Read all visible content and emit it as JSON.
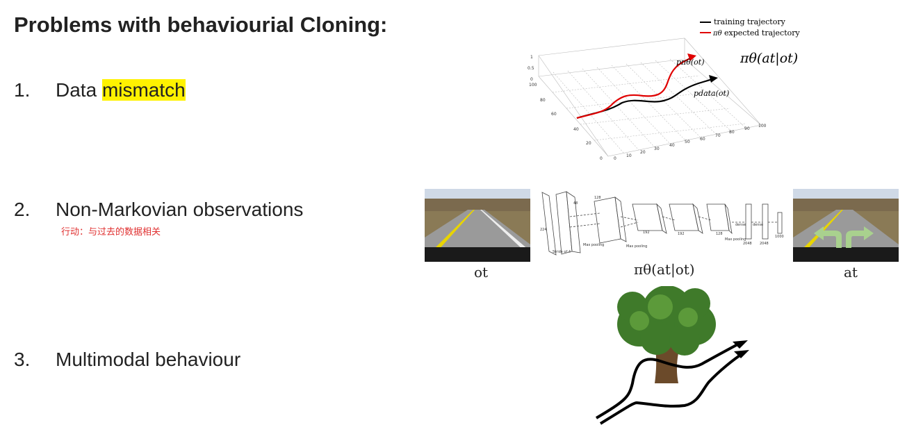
{
  "title": "Problems with behaviourial Cloning:",
  "items": [
    {
      "num": "1.",
      "text_before": "Data ",
      "highlight": "mismatch"
    },
    {
      "num": "2.",
      "text": "Non-Markovian observations",
      "note": "行动：与过去的数据相关"
    },
    {
      "num": "3.",
      "text": "Multimodal behaviour"
    }
  ],
  "trajectory_figure": {
    "legend_training": "training trajectory",
    "legend_expected": "expected trajectory",
    "legend_expected_symbol": "πθ",
    "policy": "πθ(at|ot)",
    "p_pi": "pπθ(ot)",
    "p_data": "pdata(ot)",
    "z_ticks": [
      "1",
      "0.5",
      "0"
    ],
    "y_ticks": [
      "100",
      "80",
      "60",
      "40",
      "20",
      "0"
    ],
    "x_ticks": [
      "0",
      "10",
      "20",
      "30",
      "40",
      "50",
      "60",
      "70",
      "80",
      "90",
      "100"
    ]
  },
  "cnn_figure": {
    "obs_label": "ot",
    "policy_label": "πθ(at|ot)",
    "action_label": "at",
    "layer_labels": [
      "Max pooling",
      "Max pooling",
      "Max pooling",
      "dense",
      "dense"
    ],
    "sizes": [
      "224",
      "48",
      "128",
      "192",
      "192",
      "128",
      "2048",
      "2048",
      "1000"
    ],
    "stride": "Stride of 4"
  },
  "colors": {
    "highlight": "#fff200",
    "note": "#e03030",
    "red_traj": "#e00000"
  }
}
